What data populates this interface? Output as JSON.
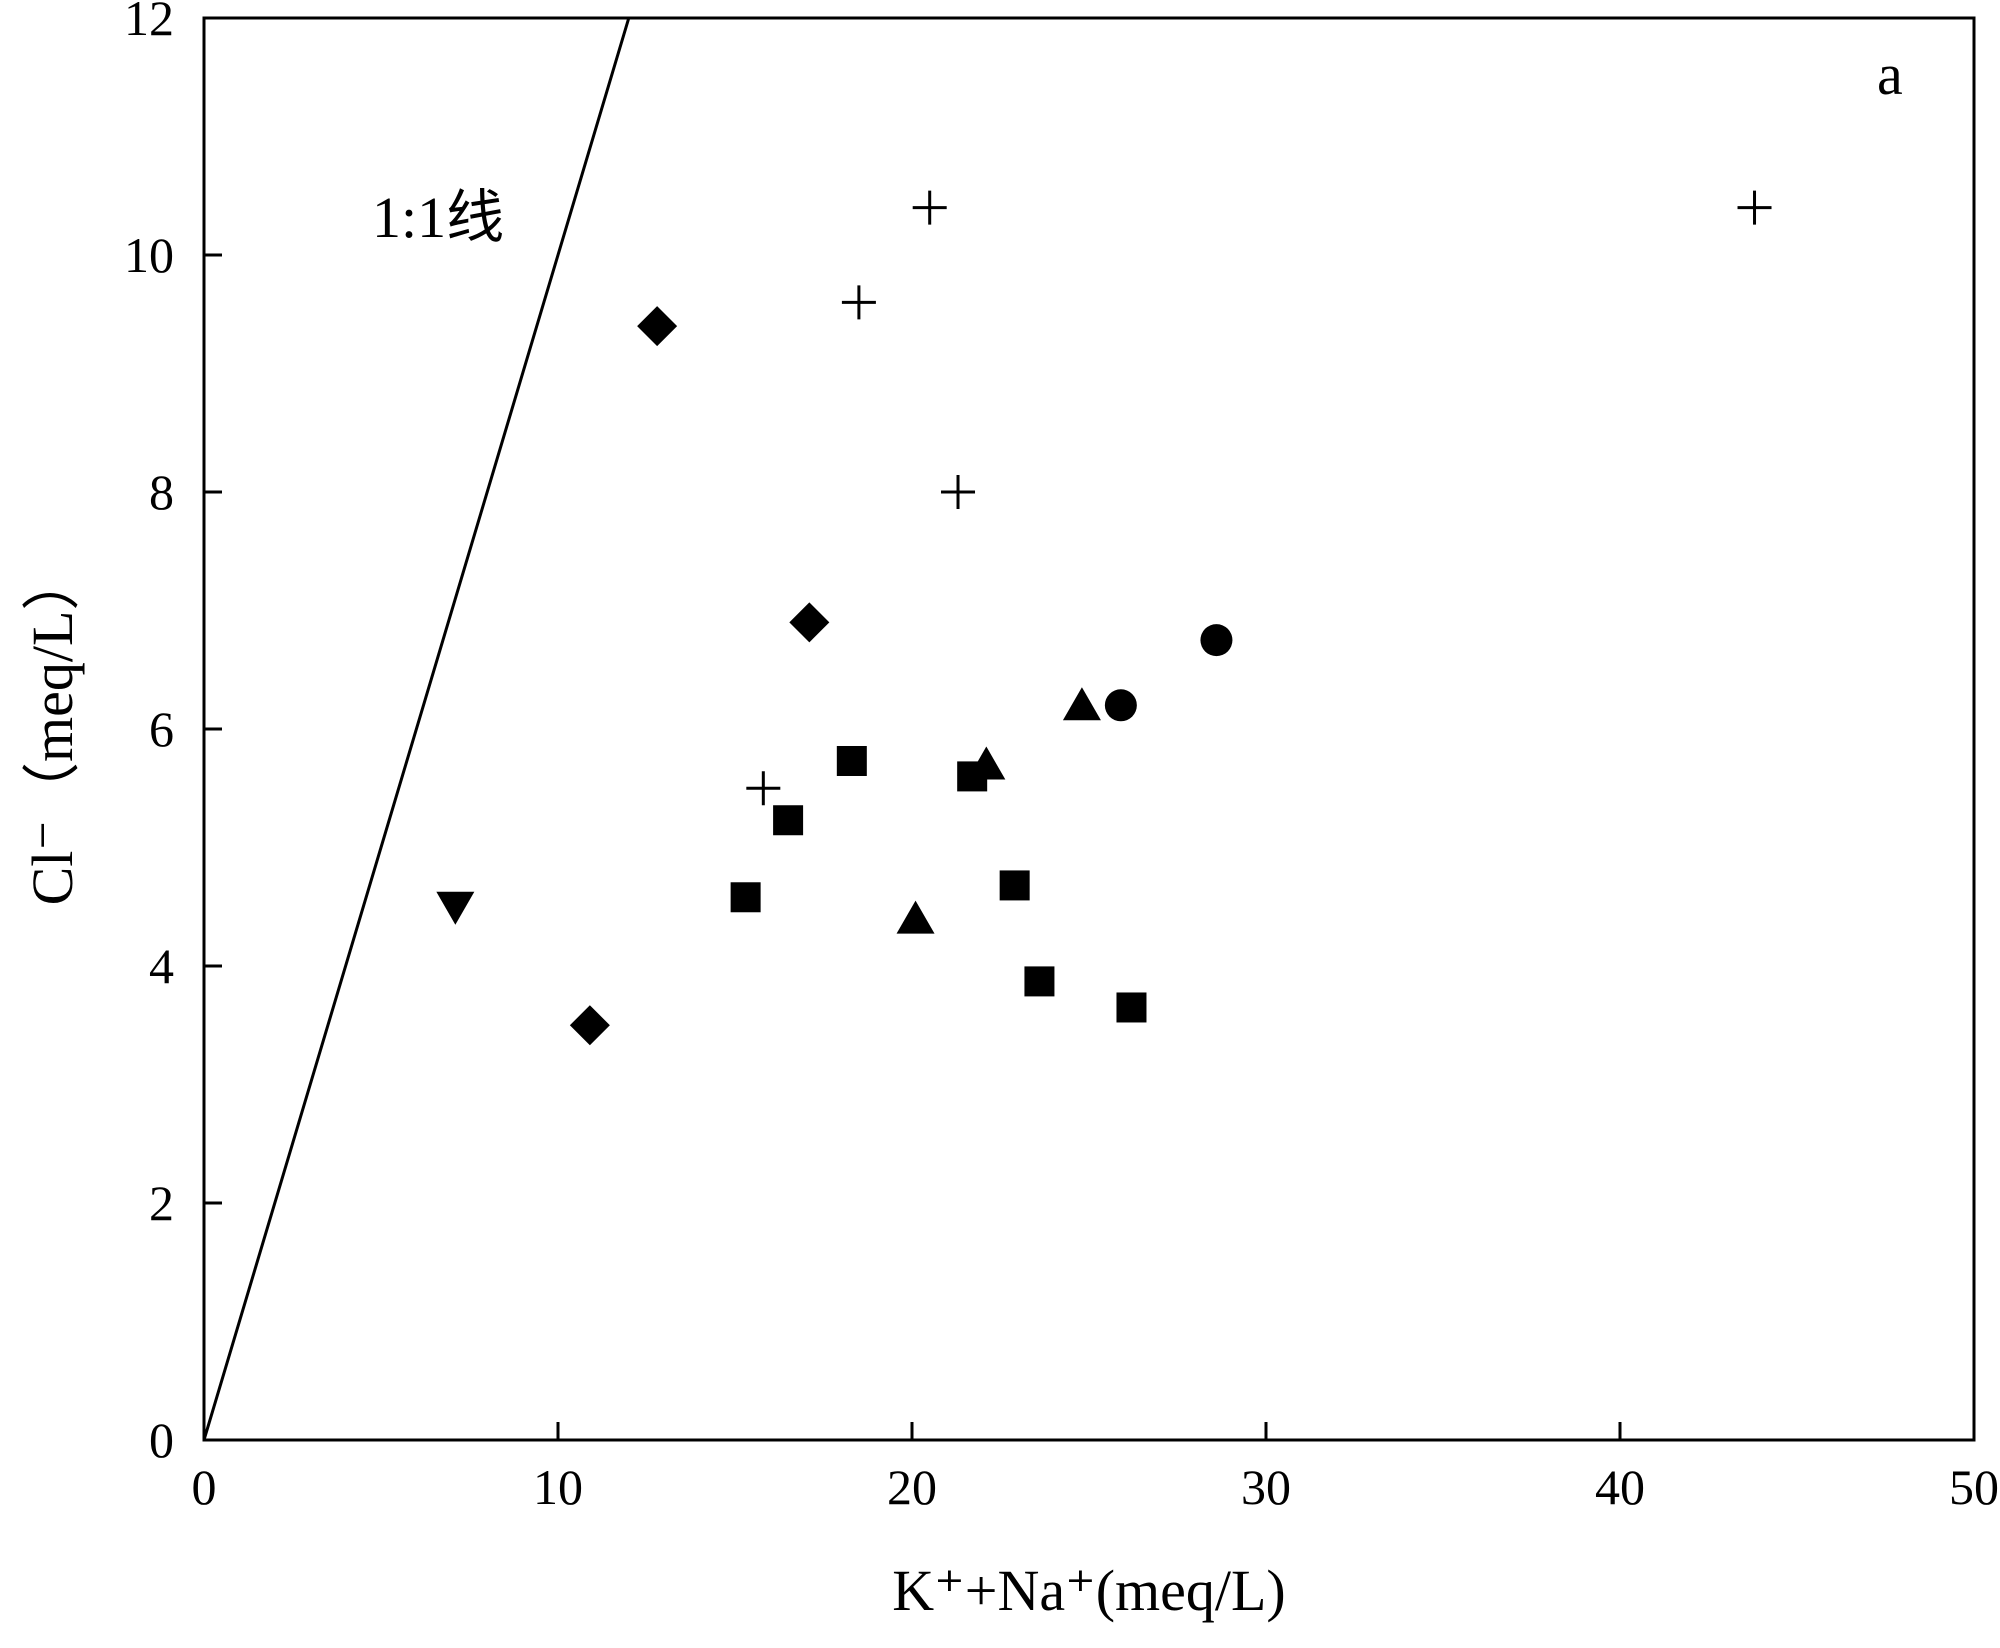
{
  "chart_data": {
    "type": "scatter",
    "panel_label": "a",
    "xlabel": "K⁺+Na⁺(meq/L)",
    "ylabel": "Cl⁻（meq/L）",
    "xlim": [
      0,
      50
    ],
    "ylim": [
      0,
      12
    ],
    "x_ticks": [
      0,
      10,
      20,
      30,
      40,
      50
    ],
    "y_ticks": [
      0,
      2,
      4,
      6,
      8,
      10,
      12
    ],
    "grid": false,
    "reference_line": {
      "label": "1:1线",
      "points": [
        [
          0,
          0
        ],
        [
          12.0,
          12
        ]
      ]
    },
    "series": [
      {
        "marker": "plus",
        "color": "#000000",
        "points": [
          [
            20.5,
            10.4
          ],
          [
            43.8,
            10.4
          ],
          [
            18.5,
            9.6
          ],
          [
            21.3,
            8.0
          ],
          [
            15.8,
            5.5
          ]
        ]
      },
      {
        "marker": "diamond",
        "color": "#000000",
        "points": [
          [
            12.8,
            9.4
          ],
          [
            17.1,
            6.9
          ],
          [
            10.9,
            3.5
          ]
        ]
      },
      {
        "marker": "circle",
        "color": "#000000",
        "points": [
          [
            28.6,
            6.75
          ],
          [
            25.9,
            6.2
          ]
        ]
      },
      {
        "marker": "triangle-up",
        "color": "#000000",
        "points": [
          [
            24.8,
            6.2
          ],
          [
            22.1,
            5.7
          ],
          [
            20.1,
            4.4
          ]
        ]
      },
      {
        "marker": "square",
        "color": "#000000",
        "points": [
          [
            18.3,
            5.73
          ],
          [
            21.7,
            5.6
          ],
          [
            16.5,
            5.23
          ],
          [
            15.3,
            4.58
          ],
          [
            22.9,
            4.68
          ],
          [
            23.6,
            3.87
          ],
          [
            26.2,
            3.65
          ]
        ]
      },
      {
        "marker": "triangle-down",
        "color": "#000000",
        "points": [
          [
            7.1,
            4.5
          ]
        ]
      }
    ]
  }
}
